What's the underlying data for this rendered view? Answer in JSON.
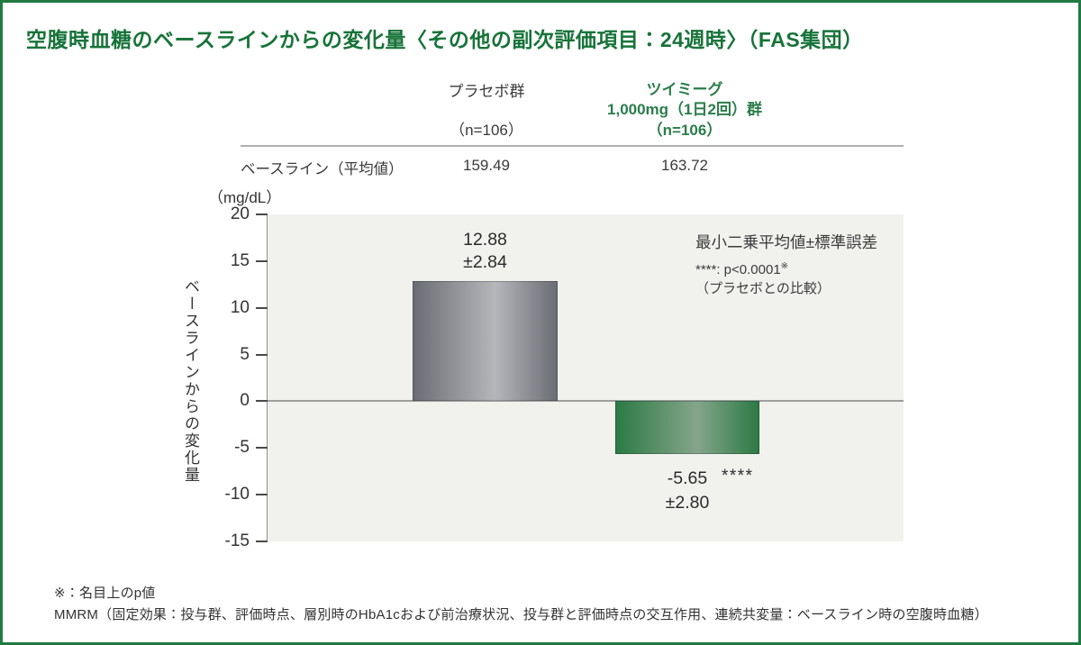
{
  "brand": {
    "border_green": "#1f7b42",
    "title_green": "#177339",
    "header_green": "#2a7d4a"
  },
  "title": "空腹時血糖のベースラインからの変化量〈その他の副次評価項目：24週時〉（FAS集団）",
  "table": {
    "groups": [
      {
        "name": "プラセボ群",
        "dose": "",
        "n": "（n=106）"
      },
      {
        "name": "ツイミーグ",
        "dose": "1,000mg（1日2回）群",
        "n": "（n=106）"
      }
    ],
    "row_label": "ベースライン（平均値）",
    "values": [
      "159.49",
      "163.72"
    ]
  },
  "chart_data": {
    "type": "bar",
    "categories": [
      "プラセボ群（n=106）",
      "ツイミーグ1,000mg（1日2回）群（n=106）"
    ],
    "values": [
      12.88,
      -5.65
    ],
    "standard_errors": [
      2.84,
      2.8
    ],
    "unit": "（mg/dL）",
    "ylabel": "ベースラインからの変化量",
    "ylim": [
      -15,
      20
    ],
    "yticks": [
      20,
      15,
      10,
      5,
      0,
      -5,
      -10,
      -15
    ],
    "grid": false,
    "plot_bg": "#f1f1ee",
    "bar_colors": [
      {
        "edge": "#6b6d74",
        "mid": "#b4b6ba"
      },
      {
        "edge": "#2c7a45",
        "mid": "#85a58b"
      }
    ],
    "bar_labels": [
      {
        "value": "12.88",
        "se": "±2.84",
        "stars": ""
      },
      {
        "value": "-5.65",
        "se": "±2.80",
        "stars": "****"
      }
    ],
    "legend": {
      "line1": "最小二乗平均値±標準誤差",
      "line2_prefix": "****: p<0.0001",
      "line2_sup": "※",
      "line3": "（プラセボとの比較）"
    }
  },
  "footnotes": [
    "※：名目上のp値",
    "MMRM（固定効果：投与群、評価時点、層別時のHbA1cおよび前治療状況、投与群と評価時点の交互作用、連続共変量：ベースライン時の空腹時血糖）"
  ]
}
